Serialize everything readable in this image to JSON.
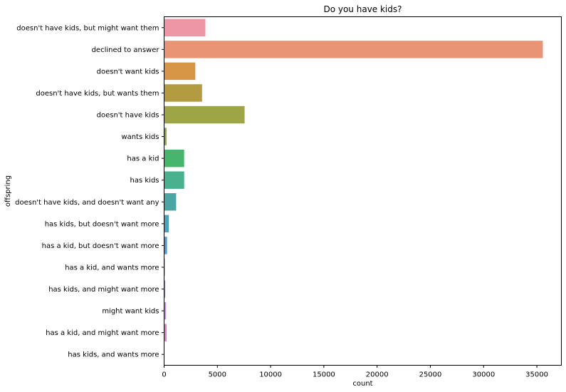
{
  "chart_data": {
    "type": "bar",
    "orientation": "horizontal",
    "title": "Do you have kids?",
    "xlabel": "count",
    "ylabel": "offspring",
    "xlim": [
      0,
      37300
    ],
    "xticks": [
      0,
      5000,
      10000,
      15000,
      20000,
      25000,
      30000,
      35000
    ],
    "xtick_labels": [
      "0",
      "5000",
      "10000",
      "15000",
      "20000",
      "25000",
      "30000",
      "35000"
    ],
    "grid": false,
    "legend": "none",
    "categories": [
      "doesn't have kids, but might want them",
      "declined to answer",
      "doesn't want kids",
      "doesn't have kids, but wants them",
      "doesn't have kids",
      "wants kids",
      "has a kid",
      "has kids",
      "doesn't have kids, and doesn't want any",
      "has kids, but doesn't want more",
      "has a kid, but doesn't want more",
      "has a kid, and wants more",
      "has kids, and might want more",
      "might want kids",
      "has a kid, and might want more",
      "has kids, and wants more"
    ],
    "values": [
      3875,
      35560,
      2930,
      3565,
      7560,
      225,
      1880,
      1885,
      1130,
      440,
      275,
      70,
      115,
      180,
      230,
      20
    ],
    "colors": [
      "#ee97a4",
      "#e99575",
      "#d59545",
      "#b29b40",
      "#9ea546",
      "#7eaa42",
      "#47b56b",
      "#49b08e",
      "#4ba6a3",
      "#4ca0b7",
      "#5599d0",
      "#7f95e5",
      "#9f89e9",
      "#c48ce6",
      "#e07bd0",
      "#ec93c7"
    ]
  }
}
